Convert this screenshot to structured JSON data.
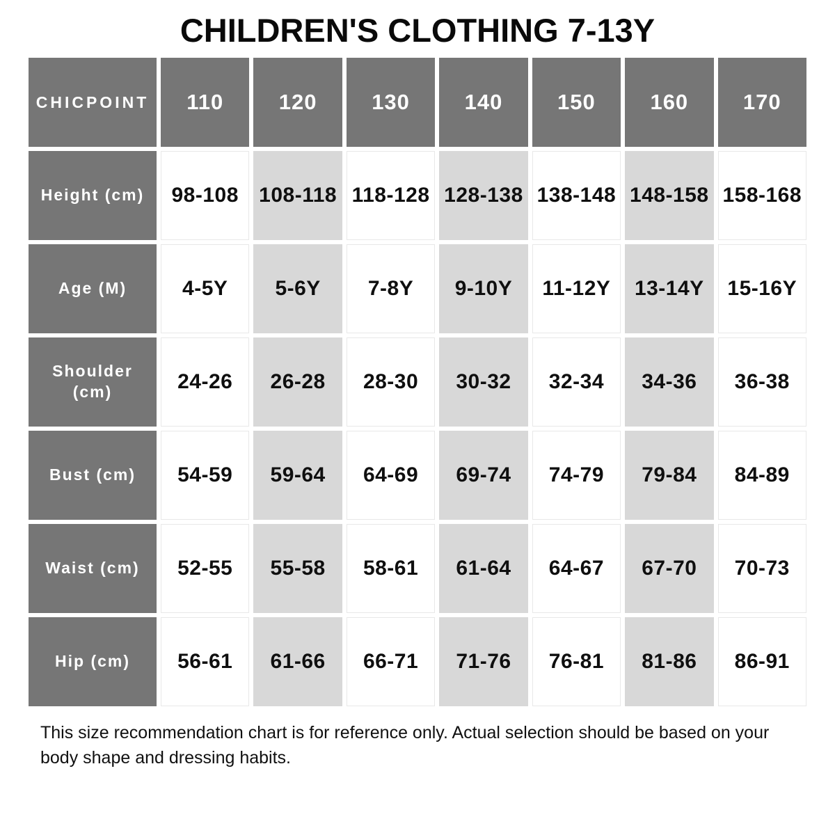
{
  "title": "CHILDREN'S CLOTHING 7-13Y",
  "footer_note": "This size recommendation chart is for reference only. Actual selection should be based on your body shape and dressing habits.",
  "chart_data": {
    "type": "table",
    "title": "CHILDREN'S CLOTHING 7-13Y",
    "columns": [
      "CHICPOINT",
      "110",
      "120",
      "130",
      "140",
      "150",
      "160",
      "170"
    ],
    "rows": [
      {
        "label": "Height (cm)",
        "values": [
          "98-108",
          "108-118",
          "118-128",
          "128-138",
          "138-148",
          "148-158",
          "158-168"
        ]
      },
      {
        "label": "Age (M)",
        "values": [
          "4-5Y",
          "5-6Y",
          "7-8Y",
          "9-10Y",
          "11-12Y",
          "13-14Y",
          "15-16Y"
        ]
      },
      {
        "label": "Shoulder (cm)",
        "values": [
          "24-26",
          "26-28",
          "28-30",
          "30-32",
          "32-34",
          "34-36",
          "36-38"
        ]
      },
      {
        "label": "Bust (cm)",
        "values": [
          "54-59",
          "59-64",
          "64-69",
          "69-74",
          "74-79",
          "79-84",
          "84-89"
        ]
      },
      {
        "label": "Waist (cm)",
        "values": [
          "52-55",
          "55-58",
          "58-61",
          "61-64",
          "64-67",
          "67-70",
          "70-73"
        ]
      },
      {
        "label": "Hip (cm)",
        "values": [
          "56-61",
          "61-66",
          "66-71",
          "71-76",
          "76-81",
          "81-86",
          "86-91"
        ]
      }
    ],
    "shaded_columns": [
      "120",
      "140",
      "160"
    ],
    "layout_hints": {
      "header_row_bg": "#767676",
      "label_column_bg": "#767676",
      "shaded_cell_bg": "#d8d8d8",
      "plain_cell_bg": "#ffffff",
      "header_text_color": "#ffffff",
      "cell_text_color": "#0f0f0f"
    }
  }
}
